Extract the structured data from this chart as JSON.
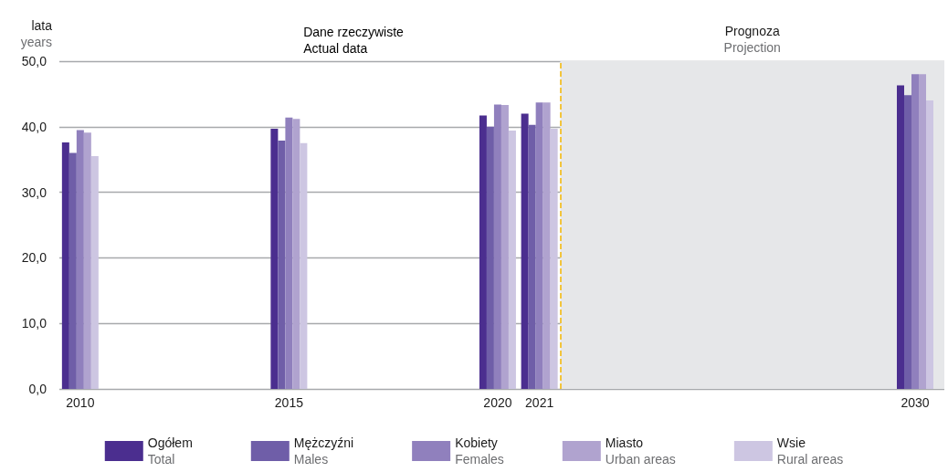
{
  "chart_data": {
    "type": "bar",
    "ylabel": "lata\nyears",
    "x": [
      2010,
      2015,
      2020,
      2021,
      2030
    ],
    "series": [
      {
        "name": "Ogółem\nTotal",
        "color": "#4b2e8f",
        "values": [
          37.6,
          39.7,
          41.7,
          42.0,
          46.3
        ]
      },
      {
        "name": "Mężczyźni\nMales",
        "color": "#6f5ea8",
        "values": [
          36.0,
          37.9,
          40.0,
          40.3,
          44.8
        ]
      },
      {
        "name": "Kobiety\nFemales",
        "color": "#9080bd",
        "values": [
          39.5,
          41.4,
          43.4,
          43.7,
          48.0
        ]
      },
      {
        "name": "Miasto\nUrban areas",
        "color": "#b0a3cf",
        "values": [
          39.1,
          41.2,
          43.3,
          43.7,
          48.0
        ]
      },
      {
        "name": "Wsie\nRural areas",
        "color": "#cdc6e2",
        "values": [
          35.5,
          37.5,
          39.4,
          39.7,
          44.0
        ]
      }
    ],
    "xlim": [
      2009.5,
      2030.7
    ],
    "xticks": [
      2010,
      2015,
      2020,
      2021,
      2030
    ],
    "ylim": [
      0,
      50
    ],
    "yticks": [
      {
        "value": 0,
        "label": "0,0"
      },
      {
        "value": 10,
        "label": "10,0"
      },
      {
        "value": 20,
        "label": "20,0"
      },
      {
        "value": 30,
        "label": "30,0"
      },
      {
        "value": 40,
        "label": "40,0"
      },
      {
        "value": 50,
        "label": "50,0"
      }
    ],
    "annotations": [
      "Dane rzeczywiste\nActual data"
    ],
    "bands": [
      {
        "axis": "x",
        "from": 2021.5,
        "to": 2030.7,
        "label": "Prognoza\nProjection",
        "color": "#e6e7e9"
      }
    ],
    "ref_lines": [
      {
        "axis": "x",
        "value": 2021.5,
        "color": "#f5b800",
        "line_style": "dashed"
      }
    ],
    "grid": "y",
    "legend": "bottom"
  }
}
